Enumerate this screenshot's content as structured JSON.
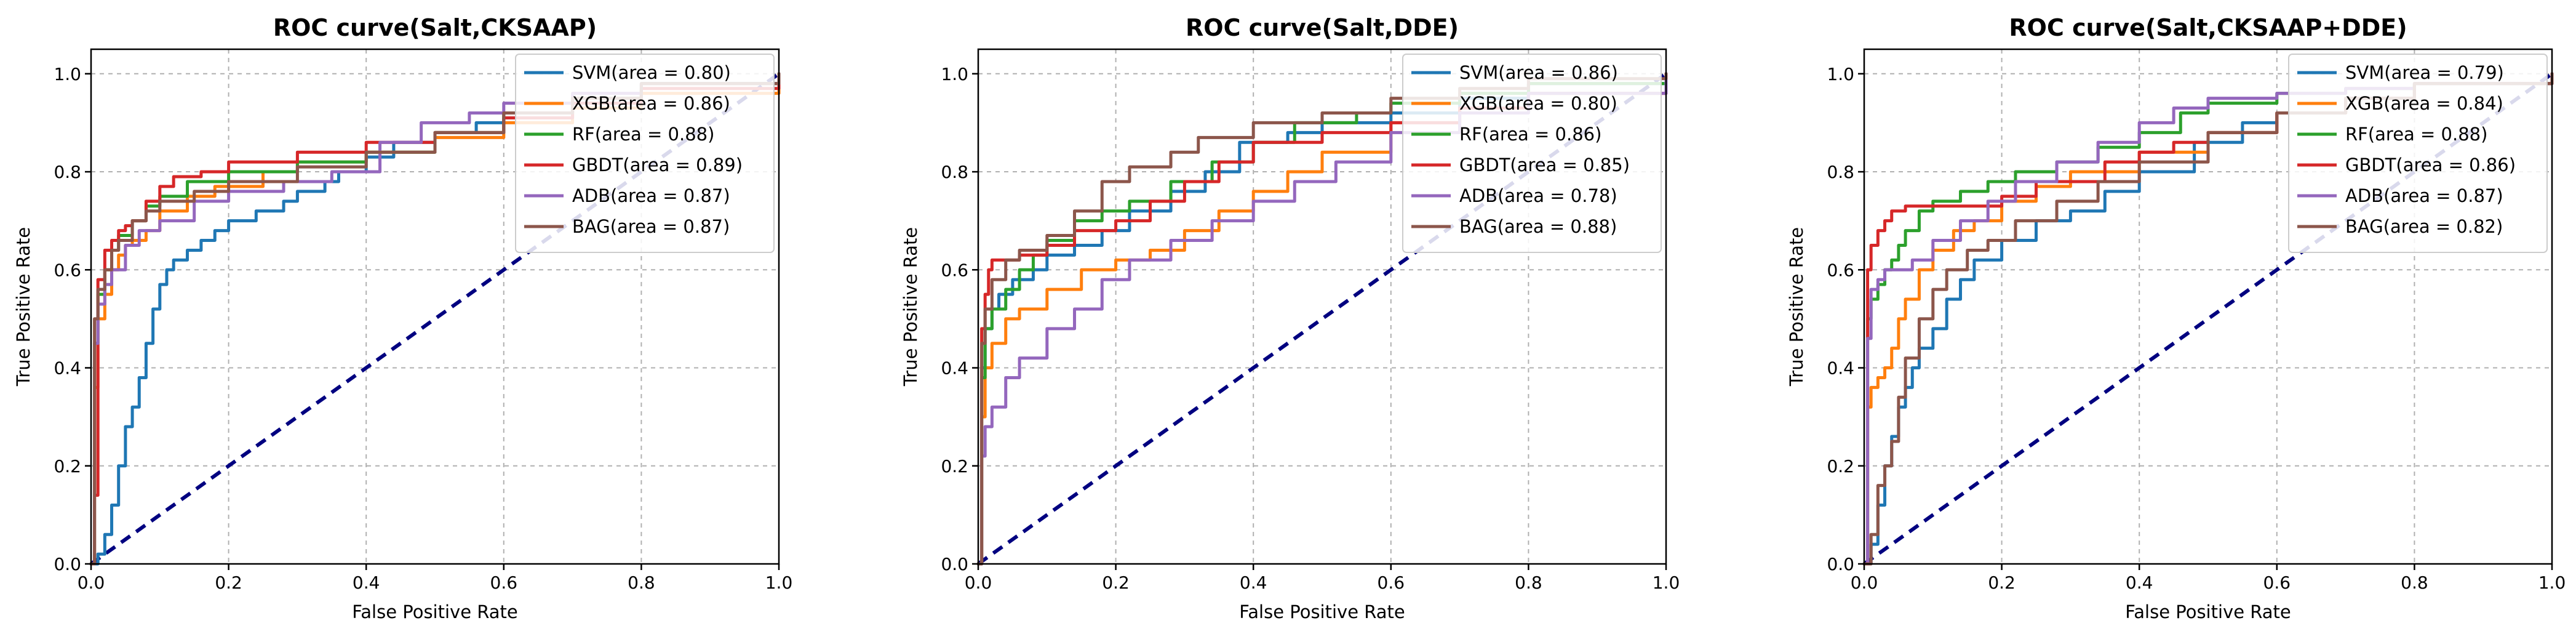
{
  "chart_data": [
    {
      "type": "line",
      "title": "ROC curve(Salt,CKSAAP)",
      "xlabel": "False Positive Rate",
      "ylabel": "True Positive Rate",
      "xlim": [
        0,
        1
      ],
      "ylim": [
        0,
        1.05
      ],
      "xticks": [
        "0.0",
        "0.2",
        "0.4",
        "0.6",
        "0.8",
        "1.0"
      ],
      "yticks": [
        "0.0",
        "0.2",
        "0.4",
        "0.6",
        "0.8",
        "1.0"
      ],
      "grid": true,
      "legend_position": "top-right",
      "series": [
        {
          "name": "SVM(area = 0.80)",
          "color": "#1f77b4",
          "x": [
            0,
            0.01,
            0.02,
            0.03,
            0.04,
            0.05,
            0.06,
            0.07,
            0.08,
            0.09,
            0.1,
            0.11,
            0.12,
            0.14,
            0.16,
            0.18,
            0.2,
            0.24,
            0.28,
            0.3,
            0.34,
            0.36,
            0.4,
            0.44,
            0.5,
            0.56,
            0.6,
            0.7,
            0.8,
            1.0
          ],
          "y": [
            0,
            0.02,
            0.06,
            0.12,
            0.2,
            0.28,
            0.32,
            0.38,
            0.45,
            0.52,
            0.57,
            0.6,
            0.62,
            0.64,
            0.66,
            0.68,
            0.7,
            0.72,
            0.74,
            0.76,
            0.78,
            0.8,
            0.83,
            0.86,
            0.88,
            0.9,
            0.92,
            0.95,
            0.98,
            1.0
          ]
        },
        {
          "name": "XGB(area = 0.86)",
          "color": "#ff7f0e",
          "x": [
            0,
            0.005,
            0.01,
            0.02,
            0.03,
            0.04,
            0.05,
            0.06,
            0.08,
            0.1,
            0.14,
            0.18,
            0.25,
            0.3,
            0.4,
            0.5,
            0.6,
            0.7,
            0.8,
            1.0
          ],
          "y": [
            0,
            0.36,
            0.5,
            0.55,
            0.6,
            0.63,
            0.65,
            0.66,
            0.68,
            0.72,
            0.75,
            0.77,
            0.8,
            0.82,
            0.84,
            0.87,
            0.9,
            0.93,
            0.96,
            1.0
          ]
        },
        {
          "name": "RF(area = 0.88)",
          "color": "#2ca02c",
          "x": [
            0,
            0.005,
            0.01,
            0.02,
            0.03,
            0.04,
            0.06,
            0.08,
            0.1,
            0.14,
            0.2,
            0.3,
            0.4,
            0.5,
            0.6,
            0.7,
            0.8,
            1.0
          ],
          "y": [
            0,
            0.45,
            0.55,
            0.6,
            0.64,
            0.67,
            0.7,
            0.73,
            0.75,
            0.78,
            0.8,
            0.82,
            0.84,
            0.88,
            0.92,
            0.95,
            0.98,
            1.0
          ]
        },
        {
          "name": "GBDT(area = 0.89)",
          "color": "#d62728",
          "x": [
            0,
            0.005,
            0.01,
            0.02,
            0.03,
            0.04,
            0.05,
            0.06,
            0.08,
            0.1,
            0.12,
            0.16,
            0.2,
            0.3,
            0.4,
            0.5,
            0.6,
            0.7,
            0.8,
            1.0
          ],
          "y": [
            0,
            0.14,
            0.58,
            0.64,
            0.66,
            0.68,
            0.69,
            0.7,
            0.74,
            0.77,
            0.79,
            0.8,
            0.82,
            0.84,
            0.86,
            0.88,
            0.91,
            0.94,
            0.97,
            1.0
          ]
        },
        {
          "name": "ADB(area = 0.87)",
          "color": "#9467bd",
          "x": [
            0,
            0.005,
            0.01,
            0.02,
            0.03,
            0.05,
            0.07,
            0.1,
            0.15,
            0.2,
            0.28,
            0.35,
            0.42,
            0.48,
            0.55,
            0.6,
            0.7,
            0.8,
            1.0
          ],
          "y": [
            0,
            0.45,
            0.53,
            0.57,
            0.6,
            0.65,
            0.68,
            0.7,
            0.74,
            0.76,
            0.78,
            0.8,
            0.86,
            0.9,
            0.92,
            0.94,
            0.96,
            0.98,
            1.0
          ]
        },
        {
          "name": "BAG(area = 0.87)",
          "color": "#8c564b",
          "x": [
            0,
            0.005,
            0.01,
            0.02,
            0.03,
            0.04,
            0.06,
            0.08,
            0.1,
            0.15,
            0.2,
            0.3,
            0.4,
            0.5,
            0.6,
            0.7,
            0.8,
            1.0
          ],
          "y": [
            0,
            0.5,
            0.56,
            0.6,
            0.64,
            0.66,
            0.7,
            0.72,
            0.74,
            0.76,
            0.78,
            0.81,
            0.84,
            0.88,
            0.92,
            0.95,
            0.98,
            1.0
          ]
        }
      ]
    },
    {
      "type": "line",
      "title": "ROC curve(Salt,DDE)",
      "xlabel": "False Positive Rate",
      "ylabel": "True Positive Rate",
      "xlim": [
        0,
        1
      ],
      "ylim": [
        0,
        1.05
      ],
      "xticks": [
        "0.0",
        "0.2",
        "0.4",
        "0.6",
        "0.8",
        "1.0"
      ],
      "yticks": [
        "0.0",
        "0.2",
        "0.4",
        "0.6",
        "0.8",
        "1.0"
      ],
      "grid": true,
      "legend_position": "top-right",
      "series": [
        {
          "name": "SVM(area = 0.86)",
          "color": "#1f77b4",
          "x": [
            0,
            0.005,
            0.01,
            0.02,
            0.03,
            0.05,
            0.08,
            0.1,
            0.14,
            0.18,
            0.22,
            0.28,
            0.33,
            0.38,
            0.45,
            0.5,
            0.6,
            0.7,
            0.8,
            1.0
          ],
          "y": [
            0,
            0.4,
            0.48,
            0.52,
            0.55,
            0.58,
            0.6,
            0.63,
            0.65,
            0.68,
            0.72,
            0.76,
            0.8,
            0.86,
            0.88,
            0.9,
            0.92,
            0.95,
            0.98,
            1.0
          ]
        },
        {
          "name": "XGB(area = 0.80)",
          "color": "#ff7f0e",
          "x": [
            0,
            0.005,
            0.01,
            0.02,
            0.04,
            0.06,
            0.1,
            0.15,
            0.2,
            0.25,
            0.3,
            0.35,
            0.4,
            0.45,
            0.5,
            0.6,
            0.7,
            0.8,
            1.0
          ],
          "y": [
            0,
            0.3,
            0.4,
            0.45,
            0.5,
            0.52,
            0.56,
            0.6,
            0.62,
            0.64,
            0.68,
            0.72,
            0.76,
            0.8,
            0.84,
            0.9,
            0.93,
            0.96,
            1.0
          ]
        },
        {
          "name": "RF(area = 0.86)",
          "color": "#2ca02c",
          "x": [
            0,
            0.005,
            0.01,
            0.02,
            0.04,
            0.06,
            0.08,
            0.1,
            0.14,
            0.18,
            0.22,
            0.28,
            0.34,
            0.4,
            0.46,
            0.55,
            0.6,
            0.7,
            0.8,
            1.0
          ],
          "y": [
            0,
            0.38,
            0.48,
            0.52,
            0.56,
            0.6,
            0.63,
            0.66,
            0.7,
            0.72,
            0.74,
            0.78,
            0.82,
            0.86,
            0.9,
            0.92,
            0.94,
            0.96,
            0.98,
            1.0
          ]
        },
        {
          "name": "GBDT(area = 0.85)",
          "color": "#d62728",
          "x": [
            0,
            0.005,
            0.01,
            0.015,
            0.02,
            0.04,
            0.06,
            0.1,
            0.14,
            0.2,
            0.25,
            0.3,
            0.35,
            0.4,
            0.5,
            0.6,
            0.7,
            0.8,
            1.0
          ],
          "y": [
            0,
            0.48,
            0.55,
            0.6,
            0.62,
            0.62,
            0.63,
            0.65,
            0.68,
            0.7,
            0.74,
            0.78,
            0.82,
            0.86,
            0.88,
            0.9,
            0.93,
            0.96,
            1.0
          ]
        },
        {
          "name": "ADB(area = 0.78)",
          "color": "#9467bd",
          "x": [
            0,
            0.005,
            0.01,
            0.02,
            0.04,
            0.06,
            0.1,
            0.14,
            0.18,
            0.22,
            0.28,
            0.34,
            0.4,
            0.46,
            0.52,
            0.6,
            0.7,
            0.8,
            1.0
          ],
          "y": [
            0,
            0.22,
            0.28,
            0.32,
            0.38,
            0.42,
            0.48,
            0.52,
            0.58,
            0.62,
            0.66,
            0.7,
            0.74,
            0.78,
            0.82,
            0.88,
            0.92,
            0.96,
            1.0
          ]
        },
        {
          "name": "BAG(area = 0.88)",
          "color": "#8c564b",
          "x": [
            0,
            0.005,
            0.01,
            0.02,
            0.04,
            0.06,
            0.1,
            0.14,
            0.18,
            0.22,
            0.28,
            0.32,
            0.4,
            0.5,
            0.6,
            0.7,
            0.8,
            1.0
          ],
          "y": [
            0,
            0.45,
            0.52,
            0.58,
            0.62,
            0.64,
            0.67,
            0.72,
            0.78,
            0.81,
            0.84,
            0.87,
            0.9,
            0.92,
            0.95,
            0.97,
            0.99,
            1.0
          ]
        }
      ]
    },
    {
      "type": "line",
      "title": "ROC curve(Salt,CKSAAP+DDE)",
      "xlabel": "False Positive Rate",
      "ylabel": "True Positive Rate",
      "xlim": [
        0,
        1
      ],
      "ylim": [
        0,
        1.05
      ],
      "xticks": [
        "0.0",
        "0.2",
        "0.4",
        "0.6",
        "0.8",
        "1.0"
      ],
      "yticks": [
        "0.0",
        "0.2",
        "0.4",
        "0.6",
        "0.8",
        "1.0"
      ],
      "grid": true,
      "legend_position": "top-right",
      "series": [
        {
          "name": "SVM(area = 0.79)",
          "color": "#1f77b4",
          "x": [
            0,
            0.01,
            0.02,
            0.03,
            0.04,
            0.05,
            0.06,
            0.07,
            0.08,
            0.1,
            0.12,
            0.14,
            0.16,
            0.2,
            0.25,
            0.3,
            0.35,
            0.4,
            0.48,
            0.55,
            0.6,
            0.7,
            0.8,
            1.0
          ],
          "y": [
            0,
            0.04,
            0.12,
            0.2,
            0.26,
            0.32,
            0.36,
            0.4,
            0.44,
            0.48,
            0.54,
            0.58,
            0.62,
            0.66,
            0.7,
            0.72,
            0.76,
            0.8,
            0.86,
            0.9,
            0.92,
            0.95,
            0.98,
            1.0
          ]
        },
        {
          "name": "XGB(area = 0.84)",
          "color": "#ff7f0e",
          "x": [
            0,
            0.005,
            0.01,
            0.02,
            0.03,
            0.04,
            0.05,
            0.06,
            0.08,
            0.1,
            0.13,
            0.16,
            0.2,
            0.25,
            0.3,
            0.4,
            0.5,
            0.6,
            0.7,
            0.8,
            1.0
          ],
          "y": [
            0,
            0.32,
            0.36,
            0.38,
            0.4,
            0.44,
            0.5,
            0.54,
            0.6,
            0.64,
            0.68,
            0.7,
            0.74,
            0.77,
            0.8,
            0.84,
            0.88,
            0.92,
            0.95,
            0.98,
            1.0
          ]
        },
        {
          "name": "RF(area = 0.88)",
          "color": "#2ca02c",
          "x": [
            0,
            0.005,
            0.01,
            0.02,
            0.03,
            0.04,
            0.05,
            0.06,
            0.08,
            0.1,
            0.14,
            0.18,
            0.22,
            0.28,
            0.34,
            0.4,
            0.46,
            0.5,
            0.6,
            0.7,
            0.8,
            1.0
          ],
          "y": [
            0,
            0.5,
            0.54,
            0.57,
            0.6,
            0.62,
            0.65,
            0.68,
            0.72,
            0.74,
            0.76,
            0.78,
            0.8,
            0.82,
            0.85,
            0.88,
            0.92,
            0.94,
            0.96,
            0.97,
            0.98,
            1.0
          ]
        },
        {
          "name": "GBDT(area = 0.86)",
          "color": "#d62728",
          "x": [
            0,
            0.005,
            0.01,
            0.02,
            0.03,
            0.04,
            0.05,
            0.06,
            0.08,
            0.1,
            0.15,
            0.2,
            0.25,
            0.3,
            0.35,
            0.4,
            0.45,
            0.5,
            0.6,
            0.7,
            0.8,
            1.0
          ],
          "y": [
            0,
            0.6,
            0.65,
            0.68,
            0.7,
            0.72,
            0.72,
            0.73,
            0.73,
            0.73,
            0.73,
            0.75,
            0.78,
            0.78,
            0.82,
            0.84,
            0.86,
            0.88,
            0.92,
            0.95,
            0.98,
            1.0
          ]
        },
        {
          "name": "ADB(area = 0.87)",
          "color": "#9467bd",
          "x": [
            0,
            0.005,
            0.01,
            0.02,
            0.03,
            0.05,
            0.07,
            0.1,
            0.14,
            0.18,
            0.22,
            0.28,
            0.34,
            0.4,
            0.45,
            0.5,
            0.6,
            0.7,
            0.8,
            1.0
          ],
          "y": [
            0,
            0.46,
            0.56,
            0.58,
            0.6,
            0.6,
            0.62,
            0.66,
            0.7,
            0.74,
            0.78,
            0.82,
            0.86,
            0.9,
            0.93,
            0.95,
            0.96,
            0.97,
            0.98,
            1.0
          ]
        },
        {
          "name": "BAG(area = 0.82)",
          "color": "#8c564b",
          "x": [
            0,
            0.01,
            0.02,
            0.03,
            0.04,
            0.05,
            0.06,
            0.08,
            0.1,
            0.12,
            0.15,
            0.18,
            0.22,
            0.28,
            0.34,
            0.4,
            0.5,
            0.6,
            0.7,
            0.8,
            1.0
          ],
          "y": [
            0,
            0.06,
            0.16,
            0.2,
            0.25,
            0.34,
            0.42,
            0.5,
            0.56,
            0.6,
            0.64,
            0.66,
            0.7,
            0.74,
            0.78,
            0.82,
            0.88,
            0.92,
            0.95,
            0.98,
            1.0
          ]
        }
      ]
    }
  ],
  "diagonal": {
    "color": "#000080",
    "x": [
      0,
      1
    ],
    "y": [
      0,
      1
    ]
  }
}
